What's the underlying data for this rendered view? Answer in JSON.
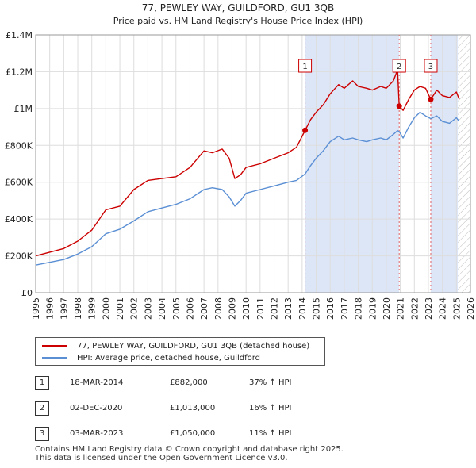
{
  "chart_data": {
    "type": "line",
    "title": "77, PEWLEY WAY, GUILDFORD, GU1 3QB",
    "subtitle": "Price paid vs. HM Land Registry's House Price Index (HPI)",
    "xlim": [
      1995,
      2026
    ],
    "ylim": [
      0,
      1400000
    ],
    "x_ticks": [
      "1995",
      "1996",
      "1997",
      "1998",
      "1999",
      "2000",
      "2001",
      "2002",
      "2003",
      "2004",
      "2005",
      "2006",
      "2007",
      "2008",
      "2009",
      "2010",
      "2011",
      "2012",
      "2013",
      "2014",
      "2015",
      "2016",
      "2017",
      "2018",
      "2019",
      "2020",
      "2021",
      "2022",
      "2023",
      "2024",
      "2025",
      "2026"
    ],
    "y_ticks": [
      {
        "value": 0,
        "label": "£0"
      },
      {
        "value": 200000,
        "label": "£200K"
      },
      {
        "value": 400000,
        "label": "£400K"
      },
      {
        "value": 600000,
        "label": "£600K"
      },
      {
        "value": 800000,
        "label": "£800K"
      },
      {
        "value": 1000000,
        "label": "£1M"
      },
      {
        "value": 1200000,
        "label": "£1.2M"
      },
      {
        "value": 1400000,
        "label": "£1.4M"
      }
    ],
    "grid": true,
    "shaded_ranges": [
      {
        "from": 2014.21,
        "to": 2020.92
      },
      {
        "from": 2023.17,
        "to": 2025.1
      }
    ],
    "hatched_from": 2025.1,
    "series": [
      {
        "name": "77, PEWLEY WAY, GUILDFORD, GU1 3QB (detached house)",
        "color": "#cc0000",
        "x": [
          1995,
          1996,
          1997,
          1998,
          1999,
          2000,
          2001,
          2002,
          2003,
          2004,
          2005,
          2006,
          2007,
          2007.6,
          2008.3,
          2008.8,
          2009.2,
          2009.6,
          2010,
          2011,
          2012,
          2013,
          2013.6,
          2014.21,
          2014.6,
          2015,
          2015.5,
          2016,
          2016.6,
          2017,
          2017.6,
          2018,
          2018.6,
          2019,
          2019.6,
          2020,
          2020.5,
          2020.8,
          2020.92,
          2021.2,
          2021.6,
          2022,
          2022.4,
          2022.8,
          2023.17,
          2023.6,
          2024,
          2024.5,
          2025,
          2025.2
        ],
        "y": [
          200000,
          220000,
          240000,
          280000,
          340000,
          450000,
          470000,
          560000,
          610000,
          620000,
          630000,
          680000,
          770000,
          760000,
          780000,
          730000,
          620000,
          640000,
          680000,
          700000,
          730000,
          760000,
          790000,
          882000,
          940000,
          980000,
          1020000,
          1080000,
          1130000,
          1110000,
          1150000,
          1120000,
          1110000,
          1100000,
          1120000,
          1110000,
          1150000,
          1210000,
          1013000,
          990000,
          1050000,
          1100000,
          1120000,
          1110000,
          1050000,
          1100000,
          1070000,
          1060000,
          1090000,
          1050000
        ]
      },
      {
        "name": "HPI: Average price, detached house, Guildford",
        "color": "#5b8fd4",
        "x": [
          1995,
          1996,
          1997,
          1998,
          1999,
          2000,
          2001,
          2002,
          2003,
          2004,
          2005,
          2006,
          2007,
          2007.6,
          2008.3,
          2008.8,
          2009.2,
          2009.6,
          2010,
          2011,
          2012,
          2013,
          2013.6,
          2014.21,
          2014.6,
          2015,
          2015.5,
          2016,
          2016.6,
          2017,
          2017.6,
          2018,
          2018.6,
          2019,
          2019.6,
          2020,
          2020.5,
          2020.8,
          2020.92,
          2021.2,
          2021.6,
          2022,
          2022.4,
          2022.8,
          2023.17,
          2023.6,
          2024,
          2024.5,
          2025,
          2025.2
        ],
        "y": [
          150000,
          165000,
          180000,
          210000,
          250000,
          320000,
          345000,
          390000,
          440000,
          460000,
          480000,
          510000,
          560000,
          570000,
          560000,
          520000,
          470000,
          500000,
          540000,
          560000,
          580000,
          600000,
          610000,
          645000,
          690000,
          730000,
          770000,
          820000,
          850000,
          830000,
          840000,
          830000,
          820000,
          830000,
          840000,
          830000,
          860000,
          880000,
          875000,
          840000,
          900000,
          950000,
          980000,
          960000,
          945000,
          960000,
          930000,
          920000,
          950000,
          930000
        ]
      }
    ],
    "sales": [
      {
        "id": "1",
        "x": 2014.21,
        "price": 882000
      },
      {
        "id": "2",
        "x": 2020.92,
        "price": 1013000
      },
      {
        "id": "3",
        "x": 2023.17,
        "price": 1050000
      }
    ]
  },
  "legend": {
    "property_label": "77, PEWLEY WAY, GUILDFORD, GU1 3QB (detached house)",
    "hpi_label": "HPI: Average price, detached house, Guildford"
  },
  "sales_table": [
    {
      "id": "1",
      "date": "18-MAR-2014",
      "price": "£882,000",
      "hpi": "37% ↑ HPI"
    },
    {
      "id": "2",
      "date": "02-DEC-2020",
      "price": "£1,013,000",
      "hpi": "16% ↑ HPI"
    },
    {
      "id": "3",
      "date": "03-MAR-2023",
      "price": "£1,050,000",
      "hpi": "11% ↑ HPI"
    }
  ],
  "footer": {
    "line1": "Contains HM Land Registry data © Crown copyright and database right 2025.",
    "line2": "This data is licensed under the Open Government Licence v3.0."
  }
}
